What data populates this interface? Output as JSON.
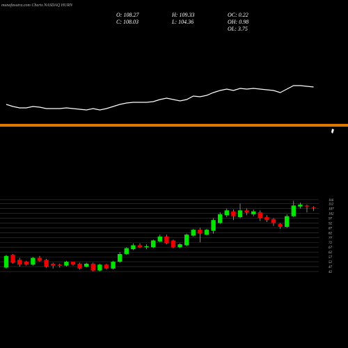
{
  "header": {
    "title": "munafasutra.com Charts NASDAQ HURN",
    "info": [
      "O: 108.27",
      "C: 108.03",
      "H: 109.33",
      "L: 104.36",
      "OC: 0.22",
      "OH: 0.98",
      "OL: 3.75"
    ]
  },
  "chart_data": [
    {
      "type": "line",
      "color": "#ffffff",
      "ylim": [
        0,
        100
      ],
      "values": [
        30,
        24,
        20,
        20,
        24,
        22,
        18,
        18,
        18,
        20,
        18,
        16,
        14,
        18,
        14,
        18,
        24,
        30,
        34,
        36,
        36,
        36,
        38,
        44,
        48,
        44,
        40,
        44,
        54,
        52,
        56,
        64,
        70,
        74,
        70,
        76,
        74,
        76,
        74,
        72,
        70,
        64,
        74,
        84,
        84,
        82,
        80
      ]
    },
    {
      "type": "candlestick",
      "up_color": "#00e600",
      "down_color": "#ee0000",
      "grid": true,
      "ylim": [
        40,
        118
      ],
      "yticks": [
        42,
        47,
        52,
        57,
        62,
        67,
        72,
        77,
        82,
        87,
        92,
        97,
        102,
        107,
        112,
        116
      ],
      "open": [
        46,
        59,
        54,
        52,
        49,
        56,
        54,
        50,
        49,
        48,
        52,
        50,
        47,
        50,
        43,
        49,
        45,
        52,
        60,
        65,
        69,
        67,
        67,
        73,
        78,
        74,
        67,
        69,
        79,
        85,
        80,
        84,
        92,
        100,
        104,
        98,
        105,
        101,
        103,
        98,
        96,
        91,
        88,
        99,
        109,
        110,
        108.27
      ],
      "high": [
        59,
        60,
        56,
        53,
        57,
        58,
        55,
        51,
        50,
        53,
        52,
        51,
        51,
        51,
        50,
        50,
        53,
        62,
        67,
        71,
        71,
        70,
        75,
        80,
        80,
        75,
        71,
        81,
        86,
        87,
        86,
        97,
        103,
        107,
        106,
        112,
        107,
        106,
        105,
        100,
        97,
        92,
        101,
        115,
        113,
        111,
        109.33
      ],
      "low": [
        45,
        50,
        47,
        48,
        48,
        52,
        46,
        45,
        46,
        47,
        48,
        44,
        46,
        42,
        42,
        44,
        44,
        51,
        59,
        64,
        66,
        65,
        66,
        72,
        70,
        66,
        66,
        68,
        78,
        72,
        79,
        81,
        91,
        98,
        95,
        97,
        100,
        99,
        94,
        93,
        89,
        86,
        87,
        98,
        107,
        103,
        104.36
      ],
      "close": [
        58,
        51,
        49,
        49,
        56,
        53,
        47,
        48,
        48,
        52,
        49,
        45,
        50,
        43,
        49,
        45,
        52,
        60,
        66,
        69,
        67,
        68,
        74,
        78,
        71,
        67,
        70,
        80,
        85,
        81,
        85,
        95,
        101,
        105,
        99,
        105,
        103,
        104,
        97,
        95,
        92,
        88,
        99,
        110,
        111,
        109,
        108.03
      ]
    }
  ]
}
